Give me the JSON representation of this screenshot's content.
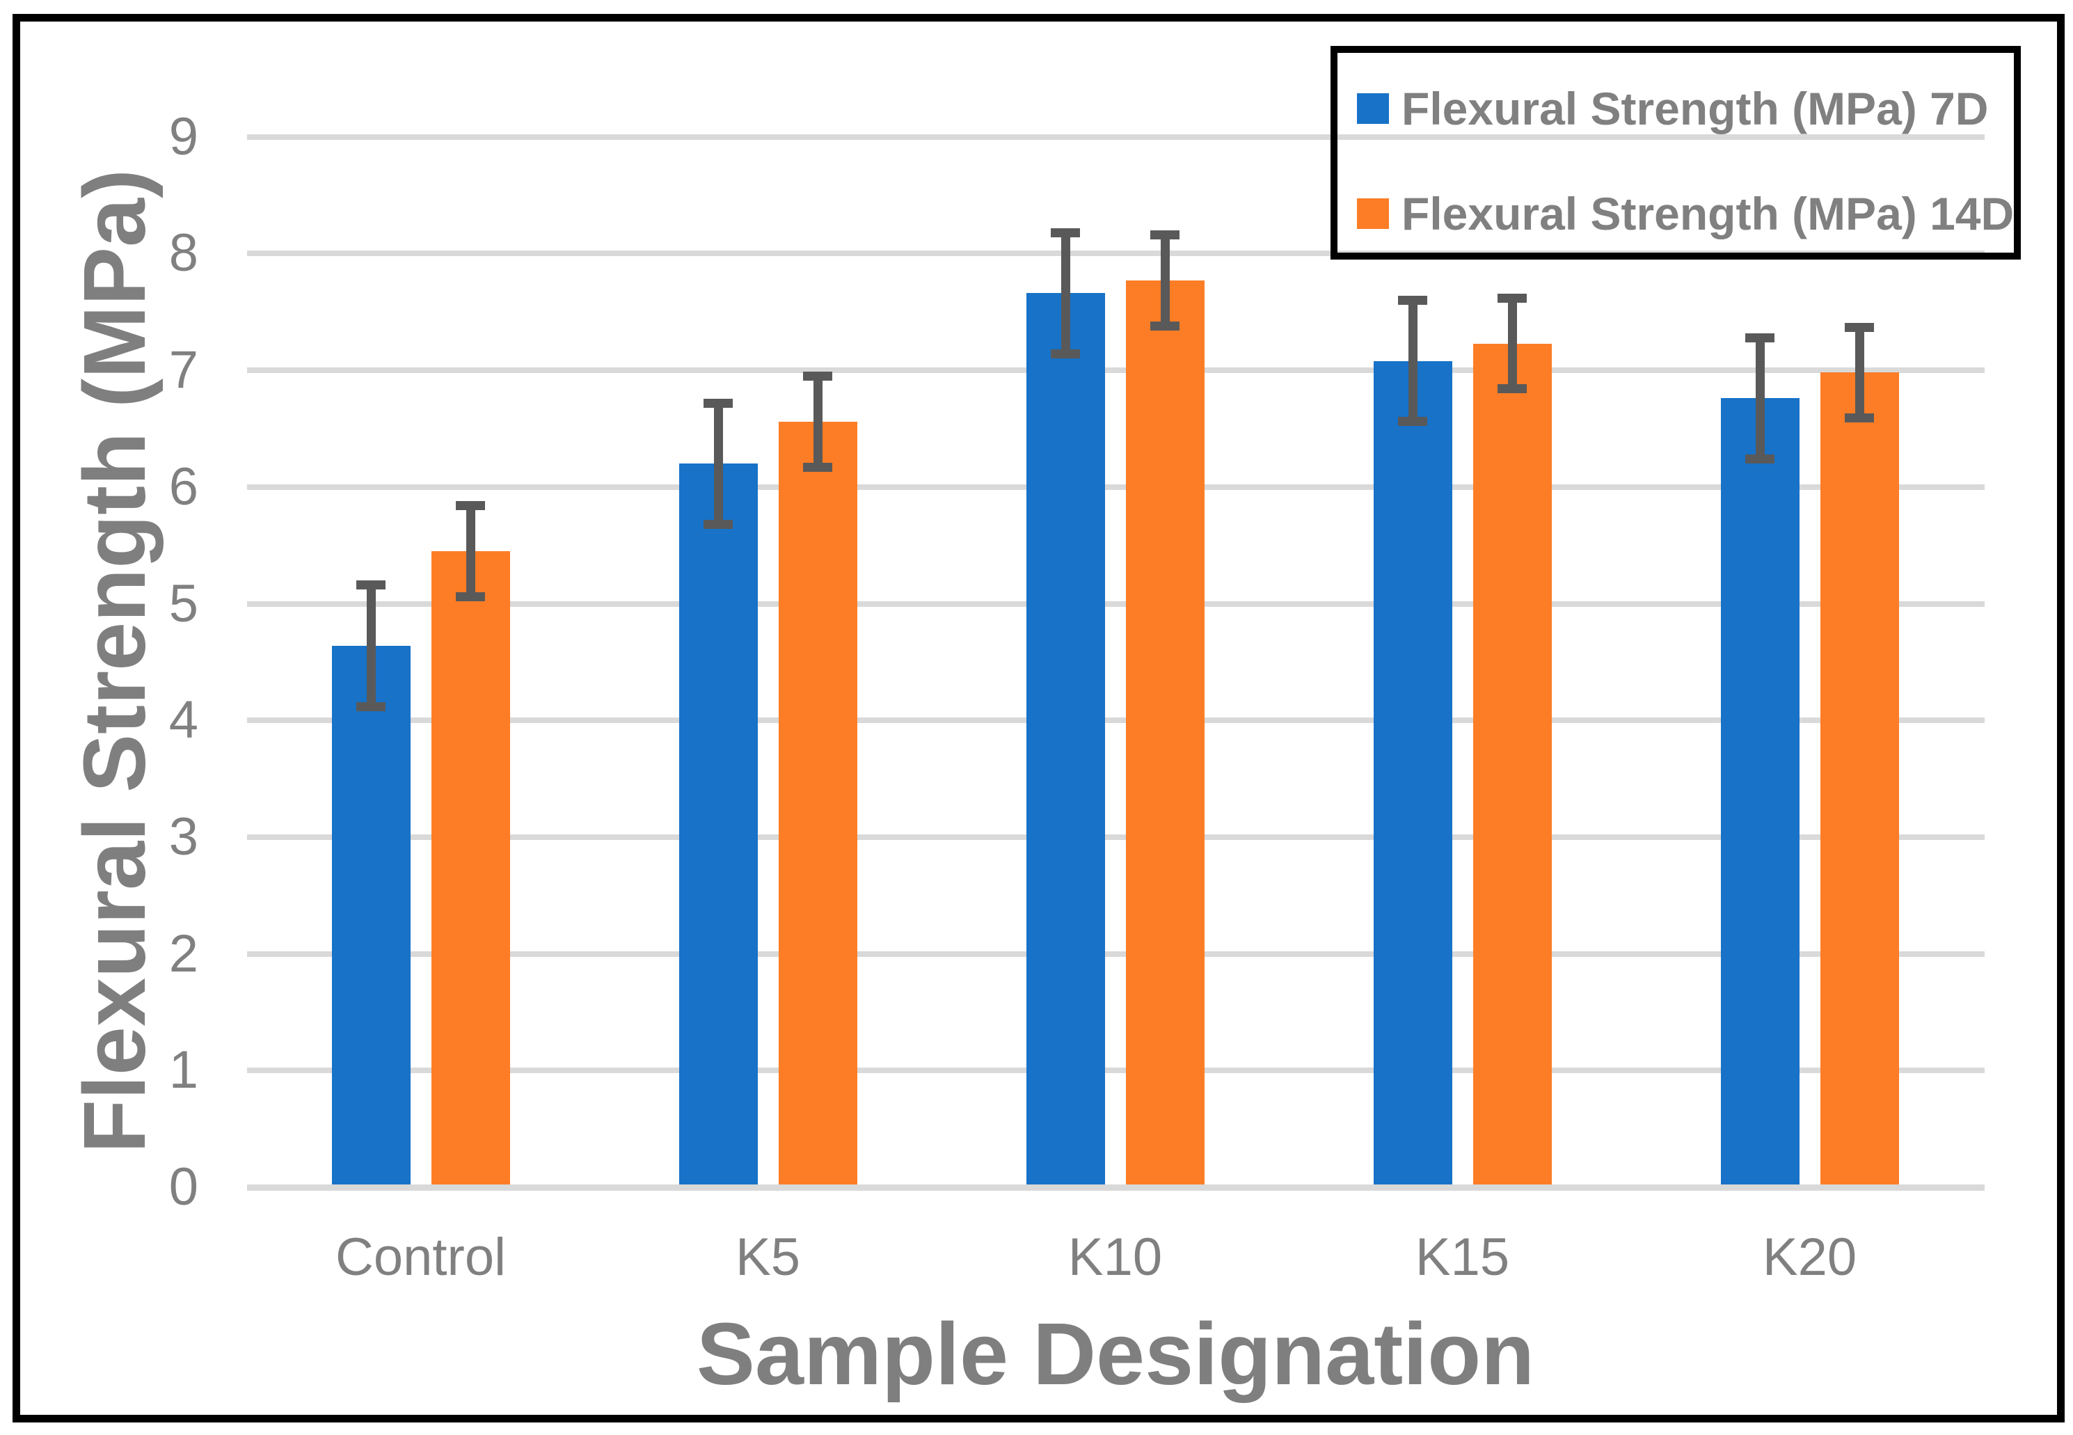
{
  "figure": {
    "background": "#ffffff",
    "border_color": "#000000"
  },
  "colors": {
    "series_7d": "#1772C8",
    "series_14d": "#FD7D26",
    "error_bar": "#595959",
    "gridline": "#D9D9D9",
    "axis_text": "#808080",
    "axis_title_text": "#7F7F7F",
    "legend_border": "#000000"
  },
  "chart_data": {
    "type": "bar",
    "title": "",
    "xlabel": "Sample Designation",
    "ylabel": "Flexural Strength (MPa)",
    "categories": [
      "Control",
      "K5",
      "K10",
      "K15",
      "K20"
    ],
    "series": [
      {
        "name": "Flexural Strength (MPa) 7D",
        "color": "#1772C8",
        "values": [
          4.64,
          6.2,
          7.66,
          7.08,
          6.76
        ],
        "error": 0.52
      },
      {
        "name": "Flexural Strength (MPa) 14D",
        "color": "#FD7D26",
        "values": [
          5.45,
          6.56,
          7.77,
          7.23,
          6.98
        ],
        "error": 0.39
      }
    ],
    "ylim": [
      0,
      9
    ],
    "yticks": [
      0,
      1,
      2,
      3,
      4,
      5,
      6,
      7,
      8,
      9
    ],
    "grid": true,
    "error_bars": true,
    "legend_position": "top-right"
  }
}
